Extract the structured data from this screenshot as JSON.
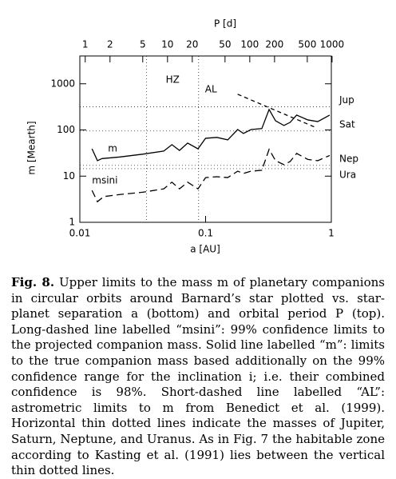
{
  "chart_data": {
    "type": "line",
    "xlabel": "a [AU]",
    "ylabel": "m [Mearth]",
    "x2label": "P [d]",
    "xscale": "log",
    "yscale": "log",
    "x2scale": "log",
    "xlim": [
      0.01,
      1
    ],
    "ylim": [
      1,
      4000
    ],
    "x2lim": [
      0.86,
      980
    ],
    "xticks": [
      0.01,
      0.1,
      1
    ],
    "yticks": [
      1,
      10,
      100,
      1000
    ],
    "x2ticks": [
      1,
      2,
      5,
      10,
      20,
      50,
      100,
      200,
      500,
      1000
    ],
    "color": "#000000",
    "series": [
      {
        "name": "m",
        "linestyle": "solid",
        "x": [
          0.0125,
          0.0138,
          0.015,
          0.0208,
          0.032,
          0.0465,
          0.054,
          0.062,
          0.072,
          0.087,
          0.1,
          0.123,
          0.15,
          0.18,
          0.2,
          0.23,
          0.28,
          0.32,
          0.36,
          0.42,
          0.47,
          0.53,
          0.65,
          0.78,
          0.97
        ],
        "values": [
          39,
          21.6,
          24,
          26,
          30,
          35,
          48,
          36,
          52,
          39,
          66,
          69,
          61,
          102,
          84,
          102,
          107,
          278,
          158,
          125,
          146,
          210,
          165,
          152,
          210
        ]
      },
      {
        "name": "msini",
        "linestyle": "long-dashed",
        "x": [
          0.0125,
          0.0138,
          0.0155,
          0.0208,
          0.032,
          0.0465,
          0.054,
          0.062,
          0.072,
          0.087,
          0.1,
          0.123,
          0.15,
          0.18,
          0.2,
          0.23,
          0.28,
          0.32,
          0.36,
          0.42,
          0.47,
          0.53,
          0.65,
          0.78,
          0.97
        ],
        "values": [
          4.9,
          2.8,
          3.6,
          4.0,
          4.5,
          5.3,
          7.4,
          5.3,
          7.4,
          5.3,
          9.3,
          9.7,
          9.3,
          12.8,
          11.4,
          12.8,
          13.4,
          38,
          21.6,
          17.7,
          20.7,
          31,
          23,
          21.6,
          28
        ]
      },
      {
        "name": "AL",
        "linestyle": "short-dashed",
        "x": [
          0.18,
          0.74
        ],
        "values": [
          593,
          115
        ]
      }
    ],
    "hlines": [
      {
        "label": "Jup",
        "value": 318
      },
      {
        "label": "Sat",
        "value": 95
      },
      {
        "label": "Nep",
        "value": 17.1
      },
      {
        "label": "Ura",
        "value": 14.5
      }
    ],
    "vlines": [
      0.034,
      0.088
    ],
    "vlines_label": "HZ"
  },
  "caption": {
    "label": "Fig. 8.",
    "text": "Upper limits to the mass m of planetary companions in circular orbits around Barnard’s star plotted vs. star-planet separation a (bottom) and orbital period P (top). Long-dashed line labelled “msini”: 99% confidence limits to the projected companion mass. Solid line labelled “m”: limits to the true companion mass based additionally on the 99% confidence range for the inclination i; i.e. their combined confidence is 98%. Short-dashed line labelled “AL”: astrometric limits to m from Benedict et al. (1999). Horizontal thin dotted lines indicate the masses of Jupiter, Saturn, Neptune, and Uranus. As in Fig. 7 the habitable zone according to Kasting et al. (1991) lies between the vertical thin dotted lines."
  }
}
